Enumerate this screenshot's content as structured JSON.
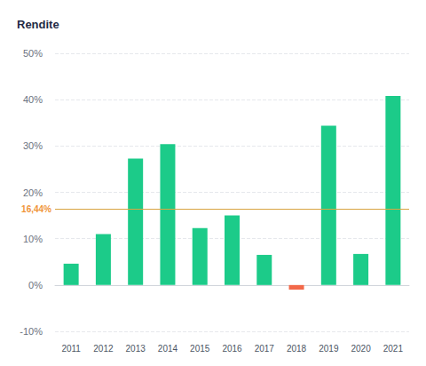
{
  "chart_data": {
    "type": "bar",
    "title": "Rendite",
    "categories": [
      "2011",
      "2012",
      "2013",
      "2014",
      "2015",
      "2016",
      "2017",
      "2018",
      "2019",
      "2020",
      "2021"
    ],
    "values": [
      4.6,
      11.0,
      27.3,
      30.4,
      12.3,
      15.0,
      6.5,
      -1.0,
      34.4,
      6.7,
      40.8
    ],
    "colors": [
      "#1ccb89",
      "#1ccb89",
      "#1ccb89",
      "#1ccb89",
      "#1ccb89",
      "#1ccb89",
      "#1ccb89",
      "#f2694a",
      "#1ccb89",
      "#1ccb89",
      "#1ccb89"
    ],
    "ylim": [
      -10,
      50
    ],
    "yticks": [
      {
        "value": -10,
        "label": "-10%"
      },
      {
        "value": 0,
        "label": "0%"
      },
      {
        "value": 10,
        "label": "10%"
      },
      {
        "value": 20,
        "label": "20%"
      },
      {
        "value": 30,
        "label": "30%"
      },
      {
        "value": 40,
        "label": "40%"
      },
      {
        "value": 50,
        "label": "50%"
      }
    ],
    "average": {
      "value": 16.44,
      "label": "16,44%"
    },
    "grid": true
  }
}
